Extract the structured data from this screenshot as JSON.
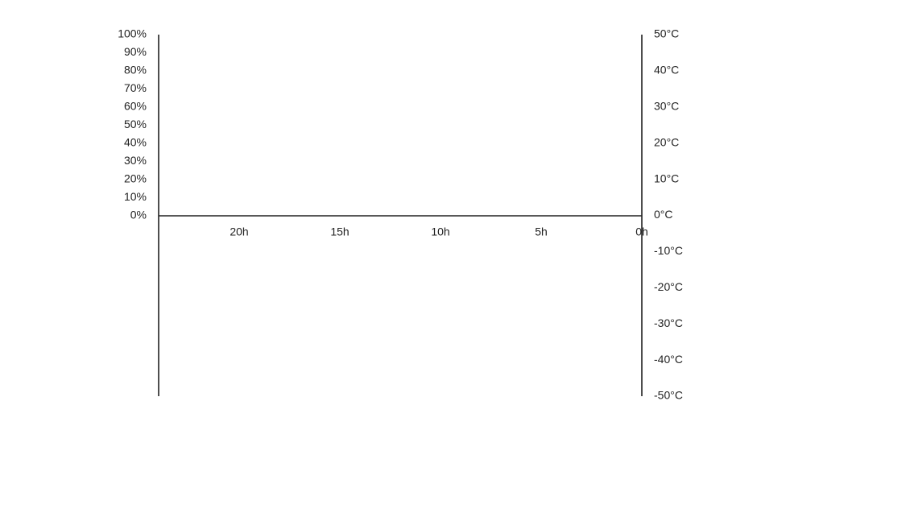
{
  "chart_data": {
    "type": "line",
    "title": "",
    "xlabel": "",
    "ylabel_left": "",
    "ylabel_right": "",
    "x_axis": {
      "ticks": [
        20,
        15,
        10,
        5,
        0
      ],
      "tick_labels": [
        "20h",
        "15h",
        "10h",
        "5h",
        "0h"
      ],
      "range": [
        24,
        0
      ],
      "unit": "h",
      "reversed": true
    },
    "y_axis_left": {
      "ticks": [
        0,
        10,
        20,
        30,
        40,
        50,
        60,
        70,
        80,
        90,
        100
      ],
      "tick_labels": [
        "0%",
        "10%",
        "20%",
        "30%",
        "40%",
        "50%",
        "60%",
        "70%",
        "80%",
        "90%",
        "100%"
      ],
      "range": [
        0,
        100
      ],
      "unit": "%"
    },
    "y_axis_right": {
      "ticks": [
        50,
        40,
        30,
        20,
        10,
        0,
        -10,
        -20,
        -30,
        -40,
        -50
      ],
      "tick_labels": [
        "50°C",
        "40°C",
        "30°C",
        "20°C",
        "10°C",
        "0°C",
        "-10°C",
        "-20°C",
        "-30°C",
        "-40°C",
        "-50°C"
      ],
      "range": [
        -50,
        50
      ],
      "unit": "°C"
    },
    "series": [],
    "grid": false,
    "legend": "none"
  }
}
